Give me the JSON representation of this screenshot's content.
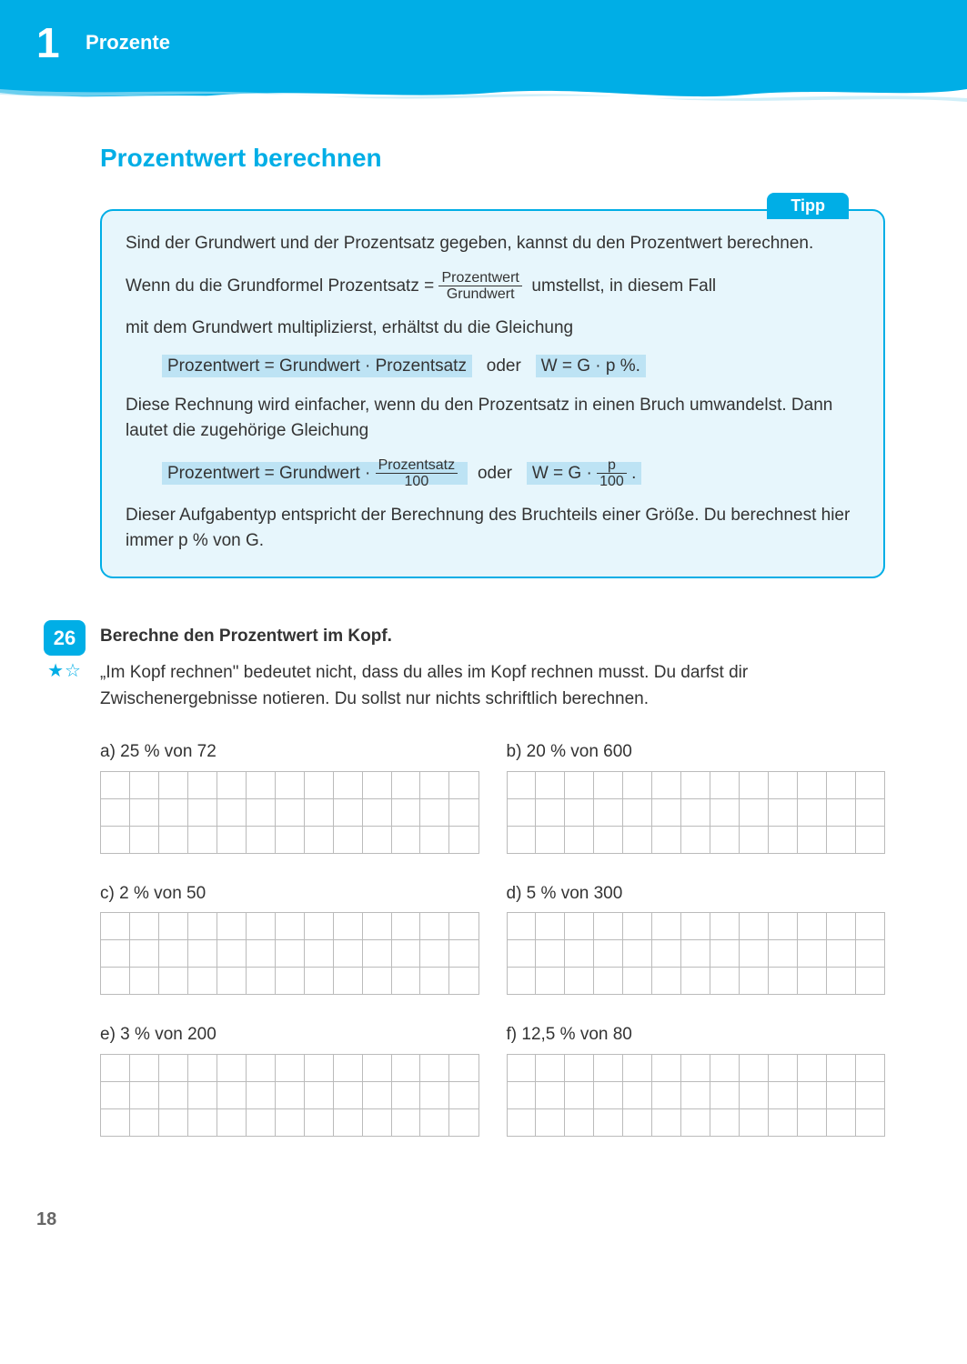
{
  "header": {
    "chapter_number": "1",
    "chapter_title": "Prozente",
    "band_color": "#00aee6"
  },
  "section": {
    "title": "Prozentwert berechnen",
    "title_color": "#00aee6"
  },
  "tip": {
    "tab_label": "Tipp",
    "box_bg": "#e7f6fc",
    "highlight_bg": "#bde3f4",
    "para1": "Sind der Grundwert und der Prozentsatz gegeben, kannst du den Prozentwert berechnen.",
    "para2_a": "Wenn du die Grundformel  Prozentsatz =",
    "para2_frac_top": "Prozentwert",
    "para2_frac_bot": "Grundwert",
    "para2_b": "umstellst, in diesem Fall",
    "para3": "mit dem Grundwert multiplizierst, erhältst du die Gleichung",
    "formula1_a": "Prozentwert = Grundwert · Prozentsatz",
    "formula1_oder": "oder",
    "formula1_b": "W = G · p %.",
    "para4": "Diese Rechnung wird einfacher, wenn du den Prozentsatz in einen Bruch umwandelst. Dann lautet die zugehörige Gleichung",
    "formula2_a": "Prozentwert = Grundwert ·",
    "formula2_frac1_top": "Prozentsatz",
    "formula2_frac1_bot": "100",
    "formula2_oder": "oder",
    "formula2_b": "W = G ·",
    "formula2_frac2_top": "p",
    "formula2_frac2_bot": "100",
    "formula2_dot": ".",
    "para5": "Dieser Aufgabentyp entspricht der Berechnung des Bruchteils einer Größe. Du berechnest hier immer p % von G."
  },
  "exercise": {
    "number": "26",
    "stars": "★☆",
    "title": "Berechne den Prozentwert im Kopf.",
    "note": "„Im Kopf rechnen\" bedeutet nicht, dass du alles im Kopf rechnen musst. Du darfst dir Zwischenergebnisse notieren. Du sollst nur nichts schriftlich berechnen.",
    "grid_rows": 3,
    "grid_cols": 13,
    "problems": [
      {
        "letter": "a)",
        "text": "25 % von 72"
      },
      {
        "letter": "b)",
        "text": "20 % von 600"
      },
      {
        "letter": "c)",
        "text": "2 % von 50"
      },
      {
        "letter": "d)",
        "text": "5 % von 300"
      },
      {
        "letter": "e)",
        "text": "3 % von 200"
      },
      {
        "letter": "f)",
        "text": "12,5 % von 80"
      }
    ]
  },
  "footer": {
    "page_number": "18"
  }
}
